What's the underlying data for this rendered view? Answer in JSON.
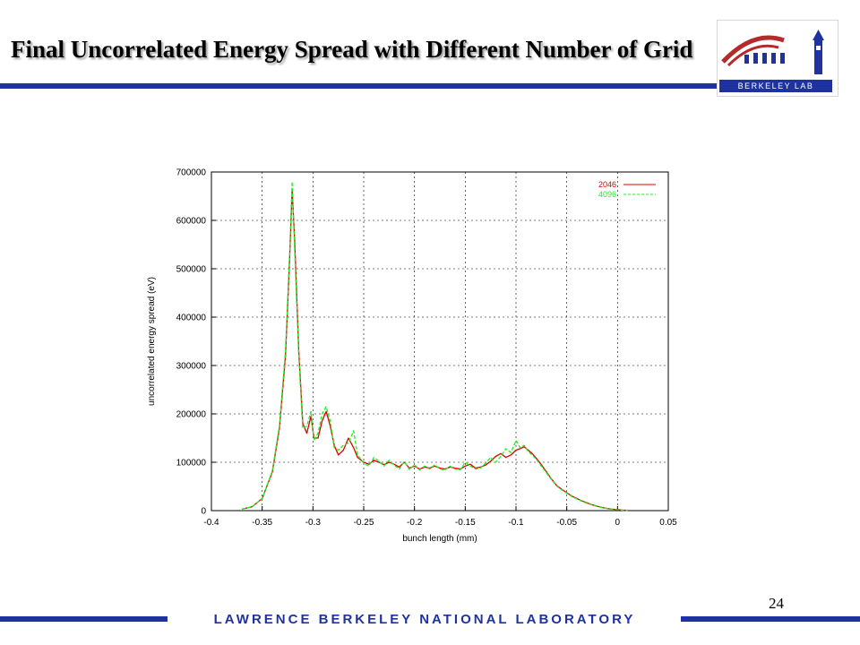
{
  "slide": {
    "title": "Final Uncorrelated Energy Spread with Different Number of Grid",
    "page_number": "24",
    "footer": "LAWRENCE BERKELEY NATIONAL LABORATORY",
    "logo_text": "BERKELEY LAB",
    "brand_color": "#1f33a0"
  },
  "chart_data": {
    "type": "line",
    "xlabel": "bunch length (mm)",
    "ylabel": "uncorrelated energy spread (eV)",
    "xlim": [
      -0.4,
      0.05
    ],
    "ylim": [
      0,
      700000
    ],
    "xticks": [
      -0.4,
      -0.35,
      -0.3,
      -0.25,
      -0.2,
      -0.15,
      -0.1,
      -0.05,
      0,
      0.05
    ],
    "xtick_labels": [
      "-0.4",
      "-0.35",
      "-0.3",
      "-0.25",
      "-0.2",
      "-0.15",
      "-0.1",
      "-0.05",
      "0",
      "0.05"
    ],
    "yticks": [
      0,
      100000,
      200000,
      300000,
      400000,
      500000,
      600000,
      700000
    ],
    "ytick_labels": [
      "0",
      "100000",
      "200000",
      "300000",
      "400000",
      "500000",
      "600000",
      "700000"
    ],
    "grid": true,
    "legend_position": "top-right",
    "series": [
      {
        "name": "2046",
        "color": "#dd0000",
        "dash": "solid",
        "x": [
          -0.37,
          -0.36,
          -0.35,
          -0.34,
          -0.333,
          -0.327,
          -0.323,
          -0.3205,
          -0.318,
          -0.314,
          -0.31,
          -0.306,
          -0.302,
          -0.299,
          -0.295,
          -0.291,
          -0.287,
          -0.283,
          -0.279,
          -0.275,
          -0.27,
          -0.265,
          -0.26,
          -0.256,
          -0.25,
          -0.245,
          -0.24,
          -0.235,
          -0.23,
          -0.225,
          -0.22,
          -0.215,
          -0.21,
          -0.205,
          -0.2,
          -0.195,
          -0.19,
          -0.185,
          -0.18,
          -0.175,
          -0.17,
          -0.165,
          -0.16,
          -0.155,
          -0.15,
          -0.145,
          -0.14,
          -0.135,
          -0.13,
          -0.125,
          -0.12,
          -0.115,
          -0.11,
          -0.105,
          -0.1,
          -0.096,
          -0.092,
          -0.088,
          -0.084,
          -0.08,
          -0.075,
          -0.07,
          -0.065,
          -0.06,
          -0.055,
          -0.05,
          -0.045,
          -0.04,
          -0.035,
          -0.03,
          -0.025,
          -0.02,
          -0.015,
          -0.01,
          -0.005,
          0,
          0.005,
          0.01
        ],
        "y": [
          3000,
          8000,
          25000,
          80000,
          170000,
          320000,
          520000,
          665000,
          560000,
          330000,
          180000,
          160000,
          195000,
          150000,
          150000,
          185000,
          205000,
          175000,
          135000,
          115000,
          125000,
          150000,
          130000,
          110000,
          100000,
          96000,
          104000,
          100000,
          95000,
          100000,
          96000,
          90000,
          100000,
          88000,
          92000,
          86000,
          90000,
          88000,
          92000,
          88000,
          86000,
          90000,
          88000,
          86000,
          92000,
          96000,
          88000,
          90000,
          94000,
          102000,
          112000,
          118000,
          110000,
          115000,
          125000,
          128000,
          132000,
          125000,
          118000,
          108000,
          95000,
          80000,
          65000,
          52000,
          44000,
          37000,
          30000,
          25000,
          20000,
          16000,
          12000,
          9000,
          6500,
          4500,
          3000,
          2000,
          1200,
          600
        ]
      },
      {
        "name": "4096",
        "color": "#22ee22",
        "dash": "dashed",
        "x": [
          -0.37,
          -0.36,
          -0.35,
          -0.34,
          -0.333,
          -0.327,
          -0.323,
          -0.3205,
          -0.318,
          -0.314,
          -0.31,
          -0.306,
          -0.302,
          -0.299,
          -0.295,
          -0.291,
          -0.287,
          -0.283,
          -0.279,
          -0.275,
          -0.27,
          -0.265,
          -0.26,
          -0.256,
          -0.25,
          -0.245,
          -0.24,
          -0.235,
          -0.23,
          -0.225,
          -0.22,
          -0.215,
          -0.21,
          -0.205,
          -0.2,
          -0.195,
          -0.19,
          -0.185,
          -0.18,
          -0.175,
          -0.17,
          -0.165,
          -0.16,
          -0.155,
          -0.15,
          -0.145,
          -0.14,
          -0.135,
          -0.13,
          -0.125,
          -0.12,
          -0.115,
          -0.11,
          -0.105,
          -0.1,
          -0.096,
          -0.092,
          -0.088,
          -0.084,
          -0.08,
          -0.075,
          -0.07,
          -0.065,
          -0.06,
          -0.055,
          -0.05,
          -0.045,
          -0.04,
          -0.035,
          -0.03,
          -0.025,
          -0.02,
          -0.015,
          -0.01,
          -0.005,
          0,
          0.005,
          0.01
        ],
        "y": [
          3000,
          8000,
          25000,
          82000,
          175000,
          330000,
          530000,
          680000,
          540000,
          320000,
          170000,
          175000,
          205000,
          145000,
          160000,
          200000,
          215000,
          185000,
          130000,
          125000,
          135000,
          140000,
          165000,
          115000,
          98000,
          92000,
          110000,
          102000,
          92000,
          104000,
          94000,
          86000,
          102000,
          85000,
          95000,
          84000,
          92000,
          86000,
          95000,
          86000,
          84000,
          92000,
          86000,
          84000,
          100000,
          92000,
          86000,
          88000,
          98000,
          110000,
          100000,
          112000,
          128000,
          120000,
          145000,
          130000,
          135000,
          122000,
          115000,
          106000,
          92000,
          78000,
          64000,
          51000,
          43000,
          36000,
          29000,
          24000,
          19000,
          15000,
          11500,
          8500,
          6000,
          4200,
          2800,
          1800,
          1000,
          500
        ]
      }
    ]
  }
}
